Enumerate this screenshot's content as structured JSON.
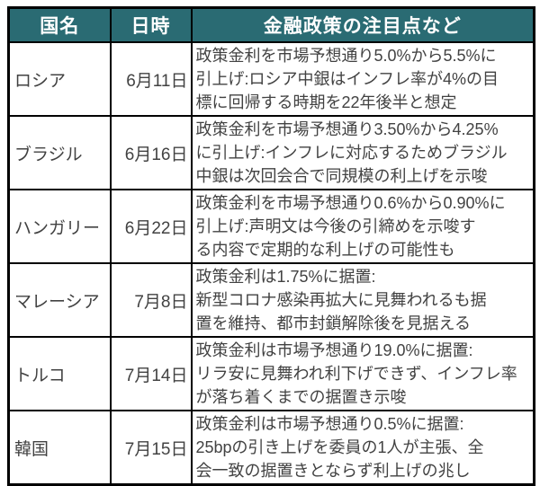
{
  "colors": {
    "header_bg": "#2a6b73",
    "header_text": "#ffffff",
    "body_text": "#424242",
    "border": "#000000",
    "page_bg": "#ffffff"
  },
  "table": {
    "headers": [
      "国名",
      "日時",
      "金融政策の注目点など"
    ],
    "rows": [
      {
        "country": "ロシア",
        "date": "6月11日",
        "note": "政策金利を市場予想通り5.0%から5.5%に\n引上げ:ロシア中銀はインフレ率が4%の目\n標に回帰する時期を22年後半と想定"
      },
      {
        "country": "ブラジル",
        "date": "6月16日",
        "note": "政策金利を市場予想通り3.50%から4.25%\nに引上げ:インフレに対応するためブラジル\n中銀は次回会合で同規模の利上げを示唆"
      },
      {
        "country": "ハンガリー",
        "date": "6月22日",
        "note": "政策金利を市場予想通り0.6%から0.90%に\n引上げ:声明文は今後の引締めを示唆す\nる内容で定期的な利上げの可能性も"
      },
      {
        "country": "マレーシア",
        "date": "7月8日",
        "note": "政策金利は1.75%に据置:\n新型コロナ感染再拡大に見舞われるも据\n置を維持、都市封鎖解除後を見据える"
      },
      {
        "country": "トルコ",
        "date": "7月14日",
        "note": "政策金利は市場予想通り19.0%に据置:\nリラ安に見舞われ利下げできず、インフレ率\nが落ち着くまでの据置き示唆"
      },
      {
        "country": "韓国",
        "date": "7月15日",
        "note": "政策金利は市場予想通り0.5%に据置:\n25bpの引き上げを委員の1人が主張、全\n会一致の据置きとならず利上げの兆し"
      }
    ]
  }
}
